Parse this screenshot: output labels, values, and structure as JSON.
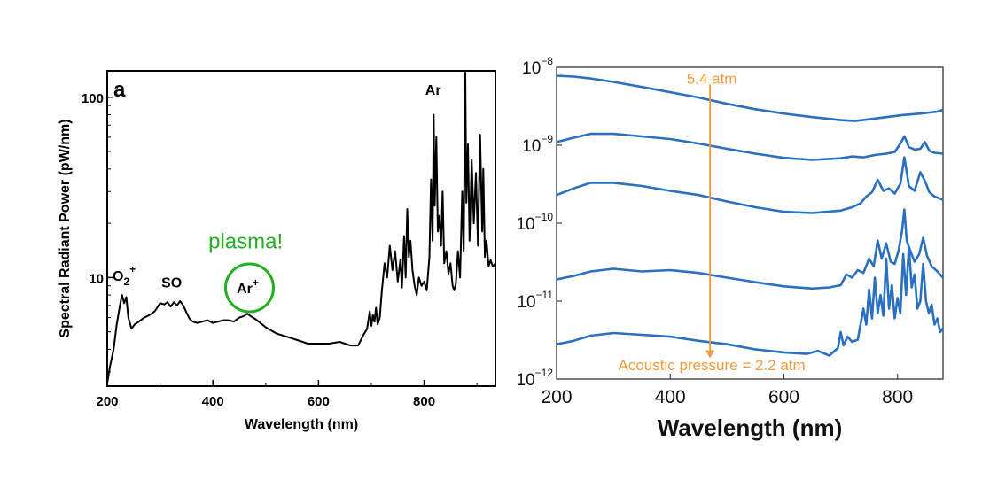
{
  "chart_data": [
    {
      "type": "line",
      "panel_label": "a",
      "xlabel": "Wavelength (nm)",
      "ylabel": "Spectral Radiant Power (pW/nm)",
      "xlim": [
        200,
        935
      ],
      "ylim": [
        2.5,
        140
      ],
      "yscale": "log",
      "xticks": [
        200,
        400,
        600,
        800
      ],
      "yticks": [
        {
          "value": 10,
          "label": "10"
        },
        {
          "value": 100,
          "label": "100"
        }
      ],
      "series": [
        {
          "color": "#000000",
          "x": [
            200,
            205,
            212,
            218,
            224,
            228,
            232,
            236,
            240,
            246,
            252,
            260,
            270,
            280,
            290,
            300,
            308,
            314,
            320,
            326,
            332,
            338,
            344,
            350,
            356,
            362,
            370,
            380,
            390,
            400,
            410,
            420,
            430,
            440,
            450,
            458,
            465,
            472,
            480,
            490,
            500,
            520,
            540,
            560,
            580,
            600,
            620,
            640,
            660,
            675,
            685,
            692,
            697,
            700,
            703,
            706,
            709,
            712,
            716,
            720,
            725,
            730,
            735,
            740,
            745,
            750,
            755,
            758,
            762,
            765,
            768,
            771,
            774,
            778,
            782,
            786,
            790,
            795,
            800,
            805,
            810,
            813,
            816,
            818,
            820,
            823,
            826,
            829,
            832,
            835,
            838,
            842,
            846,
            850,
            854,
            857,
            860,
            864,
            868,
            872,
            875,
            878,
            880,
            883,
            886,
            890,
            894,
            898,
            902,
            906,
            910,
            912,
            915,
            918,
            922,
            926,
            930,
            935
          ],
          "y": [
            2.6,
            3.2,
            4.0,
            5.5,
            7.0,
            8.0,
            7.2,
            7.8,
            6.0,
            5.2,
            5.5,
            5.7,
            6.0,
            6.2,
            6.5,
            7.2,
            7.1,
            7.3,
            6.9,
            7.3,
            7.0,
            7.4,
            7.0,
            6.4,
            5.9,
            5.7,
            5.6,
            5.7,
            5.8,
            5.6,
            5.7,
            5.8,
            5.8,
            5.7,
            6.0,
            6.1,
            6.3,
            6.1,
            5.9,
            5.6,
            5.3,
            4.9,
            4.7,
            4.5,
            4.3,
            4.3,
            4.3,
            4.4,
            4.2,
            4.2,
            4.8,
            5.2,
            6.5,
            5.4,
            6.2,
            5.7,
            6.8,
            5.5,
            6.0,
            8.5,
            12.0,
            10.0,
            15.0,
            11.0,
            14.0,
            9.5,
            12.5,
            8.8,
            17.0,
            10.0,
            24.0,
            13.0,
            16.0,
            11.0,
            9.0,
            8.0,
            10.0,
            9.0,
            9.5,
            8.5,
            13.0,
            35.0,
            16.0,
            80.0,
            25.0,
            60.0,
            18.0,
            22.0,
            15.0,
            30.0,
            12.0,
            14.0,
            10.5,
            12.0,
            9.0,
            8.5,
            9.2,
            14.0,
            10.0,
            30.0,
            14.0,
            137.0,
            26.0,
            55.0,
            16.0,
            45.0,
            20.0,
            38.0,
            15.0,
            62.0,
            18.0,
            40.0,
            13.0,
            16.0,
            11.5,
            12.5,
            11.5,
            12.0
          ]
        }
      ],
      "annotations": [
        {
          "text": "O",
          "sub": "2",
          "sup": "+",
          "x": 232,
          "y": 9.6
        },
        {
          "text": "SO",
          "x": 322,
          "y": 8.8
        },
        {
          "text": "Ar",
          "sup": "+",
          "x": 466,
          "y": 8.2
        },
        {
          "text": "Ar",
          "x": 817,
          "y": 103
        },
        {
          "text": "plasma!",
          "x": 462,
          "y": 14.5,
          "color": "#22b022"
        }
      ]
    },
    {
      "type": "line",
      "xlabel": "Wavelength (nm)",
      "xlim": [
        200,
        880
      ],
      "ylim": [
        1e-12,
        1e-08
      ],
      "yscale": "log",
      "xticks": [
        200,
        400,
        600,
        800
      ],
      "yticks": [
        {
          "value": 1e-12,
          "base": "10",
          "exp": "−12"
        },
        {
          "value": 1e-11,
          "base": "10",
          "exp": "−11"
        },
        {
          "value": 1e-10,
          "base": "10",
          "exp": "−10"
        },
        {
          "value": 1e-09,
          "base": "10",
          "exp": "−9"
        },
        {
          "value": 1e-08,
          "base": "10",
          "exp": "−8"
        }
      ],
      "series_color": "#2b70c0",
      "series": [
        {
          "x": [
            200,
            230,
            260,
            300,
            350,
            400,
            450,
            500,
            550,
            600,
            650,
            700,
            725,
            750,
            780,
            810,
            840,
            870,
            880
          ],
          "y": [
            7.8e-09,
            7.6e-09,
            7.2e-09,
            6.5e-09,
            5.6e-09,
            4.8e-09,
            4.1e-09,
            3.4e-09,
            2.9e-09,
            2.55e-09,
            2.3e-09,
            2.1e-09,
            2.05e-09,
            2.15e-09,
            2.3e-09,
            2.45e-09,
            2.55e-09,
            2.7e-09,
            2.85e-09
          ]
        },
        {
          "x": [
            200,
            230,
            260,
            300,
            350,
            400,
            450,
            500,
            550,
            600,
            650,
            700,
            720,
            740,
            760,
            780,
            795,
            805,
            812,
            820,
            830,
            840,
            848,
            856,
            865,
            880
          ],
          "y": [
            1.1e-09,
            1.25e-09,
            1.4e-09,
            1.4e-09,
            1.3e-09,
            1.2e-09,
            1.05e-09,
            9e-10,
            7.8e-10,
            6.9e-10,
            6.5e-10,
            6.8e-10,
            7.2e-10,
            7e-10,
            7.5e-10,
            7.8e-10,
            8.2e-10,
            1.05e-09,
            1.3e-09,
            9.5e-10,
            8.8e-10,
            9e-10,
            1.1e-09,
            8.5e-10,
            8e-10,
            7.8e-10
          ]
        },
        {
          "x": [
            200,
            230,
            260,
            300,
            350,
            400,
            450,
            500,
            550,
            600,
            650,
            700,
            720,
            735,
            745,
            755,
            765,
            775,
            785,
            795,
            805,
            812,
            820,
            830,
            840,
            848,
            856,
            865,
            880
          ],
          "y": [
            2.3e-10,
            2.8e-10,
            3.3e-10,
            3.3e-10,
            3e-10,
            2.6e-10,
            2.3e-10,
            1.9e-10,
            1.6e-10,
            1.4e-10,
            1.35e-10,
            1.45e-10,
            1.6e-10,
            1.8e-10,
            2.2e-10,
            2.5e-10,
            3.6e-10,
            2.6e-10,
            2.8e-10,
            2.4e-10,
            3.2e-10,
            7e-10,
            3e-10,
            2.6e-10,
            4.5e-10,
            3.5e-10,
            2.5e-10,
            2.2e-10,
            2e-10
          ]
        },
        {
          "x": [
            200,
            230,
            260,
            300,
            350,
            400,
            450,
            500,
            550,
            600,
            650,
            680,
            700,
            710,
            720,
            730,
            740,
            750,
            758,
            765,
            772,
            780,
            788,
            795,
            802,
            808,
            812,
            816,
            822,
            830,
            838,
            845,
            852,
            860,
            870,
            880
          ],
          "y": [
            1.9e-11,
            2.1e-11,
            2.4e-11,
            2.6e-11,
            2.4e-11,
            2.5e-11,
            2.3e-11,
            2e-11,
            1.75e-11,
            1.55e-11,
            1.45e-11,
            1.5e-11,
            1.6e-11,
            2.2e-11,
            2e-11,
            2.5e-11,
            2.3e-11,
            3.5e-11,
            2.8e-11,
            6e-11,
            3.5e-11,
            5.5e-11,
            3.2e-11,
            3e-11,
            4.5e-11,
            8e-11,
            1.5e-10,
            6e-11,
            4.5e-11,
            3.2e-11,
            4e-11,
            6.5e-11,
            3.8e-11,
            2.8e-11,
            2.4e-11,
            2e-11
          ]
        },
        {
          "x": [
            200,
            230,
            260,
            300,
            350,
            400,
            450,
            500,
            550,
            600,
            640,
            660,
            680,
            695,
            700,
            705,
            712,
            720,
            730,
            740,
            745,
            750,
            755,
            760,
            765,
            770,
            775,
            780,
            785,
            790,
            795,
            800,
            805,
            810,
            815,
            820,
            825,
            830,
            835,
            840,
            845,
            850,
            855,
            860,
            865,
            870,
            875,
            880
          ],
          "y": [
            2.8e-12,
            3.1e-12,
            3.6e-12,
            3.9e-12,
            3.7e-12,
            3.5e-12,
            3.1e-12,
            2.8e-12,
            2.4e-12,
            2.2e-12,
            2.1e-12,
            2.3e-12,
            2e-12,
            2.5e-12,
            4e-12,
            2.7e-12,
            3.5e-12,
            3e-12,
            3.2e-12,
            8e-12,
            5e-12,
            1.4e-11,
            6e-12,
            2e-11,
            7e-12,
            1.2e-11,
            6.5e-12,
            3.5e-11,
            8e-12,
            1.6e-11,
            6e-12,
            1.1e-11,
            7e-12,
            4e-11,
            1.2e-11,
            5e-11,
            1.5e-11,
            2.2e-11,
            8e-12,
            1e-11,
            3e-11,
            1e-11,
            7e-12,
            9e-12,
            5e-12,
            6e-12,
            4e-12,
            4.5e-12
          ]
        }
      ],
      "annotations": [
        {
          "text": "5.4 atm",
          "x": 470,
          "y": 6.2e-09,
          "color": "#f39a3c"
        },
        {
          "text": "Acoustic pressure = 2.2 atm",
          "x": 470,
          "y": 1.3e-12,
          "color": "#f39a3c"
        }
      ],
      "arrow": {
        "x": 470,
        "y_from": 6e-09,
        "y_to": 1.85e-12,
        "color": "#f39a3c"
      }
    }
  ]
}
